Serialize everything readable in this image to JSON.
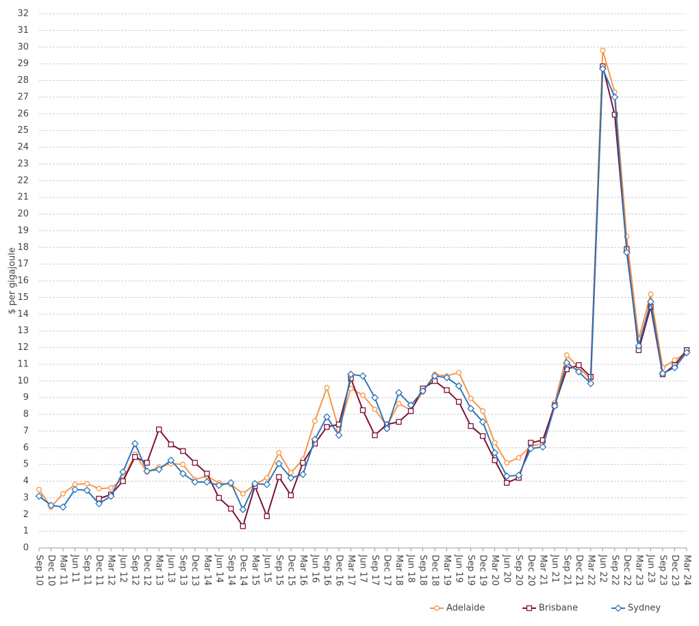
{
  "chart_data": {
    "type": "line",
    "y_label": "$ per gigajoule",
    "categories": [
      "Sep 10",
      "Dec 10",
      "Mar 11",
      "Jun 11",
      "Sep 11",
      "Dec 11",
      "Mar 12",
      "Jun 12",
      "Sep 12",
      "Dec 12",
      "Mar 13",
      "Jun 13",
      "Sep 13",
      "Dec 13",
      "Mar 14",
      "Jun 14",
      "Sep 14",
      "Dec 14",
      "Mar 15",
      "Jun 15",
      "Sep 15",
      "Dec 15",
      "Mar 16",
      "Jun 16",
      "Sep 16",
      "Dec 16",
      "Mar 17",
      "Jun 17",
      "Sep 17",
      "Dec 17",
      "Mar 18",
      "Jun 18",
      "Sep 18",
      "Dec 18",
      "Mar 19",
      "Jun 19",
      "Sep 19",
      "Dec 19",
      "Mar 20",
      "Jun 20",
      "Sep 20",
      "Dec 20",
      "Mar 21",
      "Jun 21",
      "Sep 21",
      "Dec 21",
      "Mar 22",
      "Jun 22",
      "Sep 22",
      "Dec 22",
      "Mar 23",
      "Jun 23",
      "Sep 23",
      "Dec 23",
      "Mar 24"
    ],
    "series": [
      {
        "name": "Adelaide",
        "color": "#f79646",
        "marker": "circle",
        "values": [
          3.5,
          2.45,
          3.25,
          3.8,
          3.85,
          3.55,
          3.6,
          4.1,
          5.6,
          4.55,
          4.85,
          5.05,
          5.0,
          4.1,
          4.3,
          3.9,
          3.8,
          3.25,
          3.8,
          4.2,
          5.7,
          4.5,
          5.3,
          7.6,
          9.6,
          7.1,
          9.55,
          9.15,
          8.3,
          7.3,
          8.65,
          8.25,
          9.35,
          10.4,
          10.3,
          10.5,
          8.95,
          8.2,
          6.3,
          5.1,
          5.4,
          6.1,
          6.25,
          8.7,
          11.55,
          10.8,
          10.1,
          29.8,
          27.3,
          18.65,
          12.5,
          15.2,
          10.8,
          11.25,
          11.7
        ]
      },
      {
        "name": "Brisbane",
        "color": "#7b1034",
        "marker": "square",
        "values": [
          null,
          null,
          null,
          null,
          null,
          2.95,
          3.2,
          4.0,
          5.45,
          5.1,
          7.1,
          6.2,
          5.8,
          5.1,
          4.45,
          3.0,
          2.35,
          1.3,
          3.7,
          1.9,
          4.25,
          3.15,
          5.1,
          6.25,
          7.25,
          7.4,
          10.15,
          8.25,
          6.75,
          7.4,
          7.55,
          8.2,
          9.55,
          10.0,
          9.45,
          8.75,
          7.3,
          6.7,
          5.25,
          3.9,
          4.2,
          6.3,
          6.45,
          8.55,
          10.7,
          10.95,
          10.25,
          28.85,
          25.95,
          17.9,
          11.85,
          14.45,
          10.4,
          10.95,
          11.85
        ]
      },
      {
        "name": "Sydney",
        "color": "#2e75b6",
        "marker": "diamond",
        "values": [
          3.1,
          2.55,
          2.45,
          3.5,
          3.45,
          2.65,
          3.1,
          4.55,
          6.25,
          4.6,
          4.7,
          5.25,
          4.45,
          3.95,
          3.95,
          3.75,
          3.9,
          2.3,
          3.85,
          3.8,
          5.05,
          4.2,
          4.4,
          6.5,
          7.85,
          6.75,
          10.4,
          10.3,
          9.0,
          7.15,
          9.3,
          8.55,
          9.4,
          10.3,
          10.2,
          9.7,
          8.35,
          7.55,
          5.7,
          4.3,
          4.35,
          5.95,
          6.05,
          8.5,
          11.1,
          10.55,
          9.85,
          28.7,
          27.0,
          17.7,
          12.1,
          14.75,
          10.45,
          10.8,
          11.7
        ]
      }
    ],
    "ylim": [
      0,
      32
    ],
    "yticks": [
      0,
      1,
      2,
      3,
      4,
      5,
      6,
      7,
      8,
      9,
      10,
      11,
      12,
      13,
      14,
      15,
      16,
      17,
      18,
      19,
      20,
      21,
      22,
      23,
      24,
      25,
      26,
      27,
      28,
      29,
      30,
      31,
      32
    ],
    "grid": true,
    "legend": "bottom"
  }
}
